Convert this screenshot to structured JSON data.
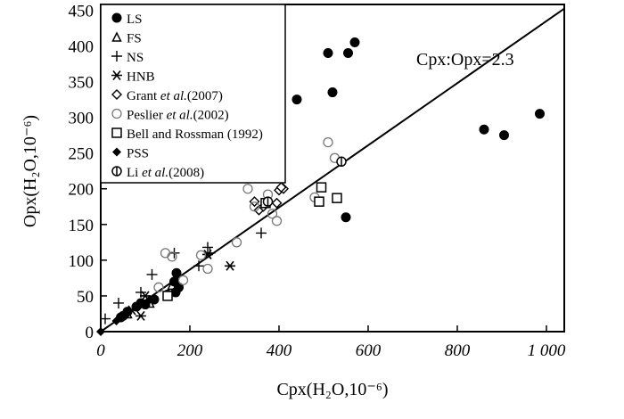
{
  "chart_data": {
    "type": "scatter",
    "title": "",
    "xlabel": "Cpx(H₂O,10⁻⁶)",
    "ylabel": "Opx(H₂O,10⁻⁶)",
    "xlim": [
      0,
      1040
    ],
    "ylim": [
      0,
      458
    ],
    "x_ticks": [
      0,
      200,
      400,
      600,
      800,
      1000
    ],
    "x_tick_labels": [
      "0",
      "200",
      "400",
      "600",
      "800",
      "1 000"
    ],
    "y_ticks": [
      0,
      50,
      100,
      150,
      200,
      250,
      300,
      350,
      400,
      450
    ],
    "y_tick_labels": [
      "0",
      "50",
      "100",
      "150",
      "200",
      "250",
      "300",
      "350",
      "400",
      "450"
    ],
    "grid": false,
    "legend_position": "top-left",
    "reference_line": {
      "label": "Cpx:Opx=2.3",
      "ratio": 2.3
    },
    "series": [
      {
        "name": "LS",
        "marker": "filled-circle",
        "points": [
          [
            440,
            325
          ],
          [
            510,
            390
          ],
          [
            520,
            335
          ],
          [
            555,
            390
          ],
          [
            570,
            405
          ],
          [
            550,
            160
          ],
          [
            860,
            283
          ],
          [
            905,
            275
          ],
          [
            985,
            305
          ],
          [
            170,
            82
          ],
          [
            165,
            70
          ],
          [
            175,
            62
          ],
          [
            168,
            55
          ],
          [
            150,
            52
          ],
          [
            120,
            45
          ],
          [
            90,
            40
          ],
          [
            80,
            35
          ],
          [
            60,
            28
          ],
          [
            45,
            20
          ],
          [
            50,
            22
          ],
          [
            100,
            38
          ]
        ]
      },
      {
        "name": "FS",
        "marker": "triangle",
        "points": [
          [
            160,
            65
          ],
          [
            165,
            72
          ],
          [
            110,
            40
          ],
          [
            60,
            25
          ]
        ]
      },
      {
        "name": "NS",
        "marker": "plus",
        "points": [
          [
            10,
            18
          ],
          [
            40,
            40
          ],
          [
            90,
            55
          ],
          [
            115,
            80
          ],
          [
            165,
            110
          ],
          [
            240,
            118
          ],
          [
            245,
            110
          ],
          [
            220,
            92
          ],
          [
            360,
            138
          ]
        ]
      },
      {
        "name": "HNB",
        "marker": "asterisk",
        "points": [
          [
            290,
            92
          ],
          [
            240,
            108
          ],
          [
            100,
            50
          ],
          [
            90,
            22
          ],
          [
            70,
            30
          ]
        ]
      },
      {
        "name": "Grant et al.(2007)",
        "marker": "diamond",
        "points": [
          [
            345,
            182
          ],
          [
            355,
            170
          ],
          [
            365,
            175
          ],
          [
            395,
            180
          ],
          [
            400,
            198
          ],
          [
            410,
            200
          ],
          [
            405,
            202
          ]
        ]
      },
      {
        "name": "Peslier et al.(2002)",
        "marker": "open-circle",
        "points": [
          [
            330,
            200
          ],
          [
            385,
            165
          ],
          [
            395,
            155
          ],
          [
            375,
            192
          ],
          [
            480,
            188
          ],
          [
            510,
            265
          ],
          [
            525,
            243
          ],
          [
            345,
            175
          ],
          [
            145,
            110
          ],
          [
            160,
            105
          ],
          [
            185,
            72
          ],
          [
            240,
            88
          ],
          [
            305,
            125
          ],
          [
            225,
            107
          ],
          [
            130,
            62
          ]
        ]
      },
      {
        "name": "Bell and Rossman (1992)",
        "marker": "square",
        "points": [
          [
            370,
            180
          ],
          [
            495,
            202
          ],
          [
            490,
            182
          ],
          [
            530,
            187
          ],
          [
            150,
            50
          ]
        ]
      },
      {
        "name": "PSS",
        "marker": "filled-diamond",
        "points": [
          [
            0,
            0
          ],
          [
            35,
            15
          ],
          [
            55,
            22
          ],
          [
            85,
            35
          ],
          [
            110,
            45
          ]
        ]
      },
      {
        "name": "Li et al.(2008)",
        "marker": "barred-circle",
        "points": [
          [
            540,
            238
          ],
          [
            375,
            182
          ]
        ]
      }
    ]
  },
  "legend_parts": [
    [
      "LS",
      ""
    ],
    [
      "FS",
      ""
    ],
    [
      "NS",
      ""
    ],
    [
      "HNB",
      ""
    ],
    [
      "Grant ",
      "et al.",
      "(2007)"
    ],
    [
      "Peslier ",
      "et al.",
      "(2002)"
    ],
    [
      "Bell and Rossman (1992)",
      ""
    ],
    [
      "PSS",
      ""
    ],
    [
      "Li ",
      "et al.",
      "(2008)"
    ]
  ]
}
